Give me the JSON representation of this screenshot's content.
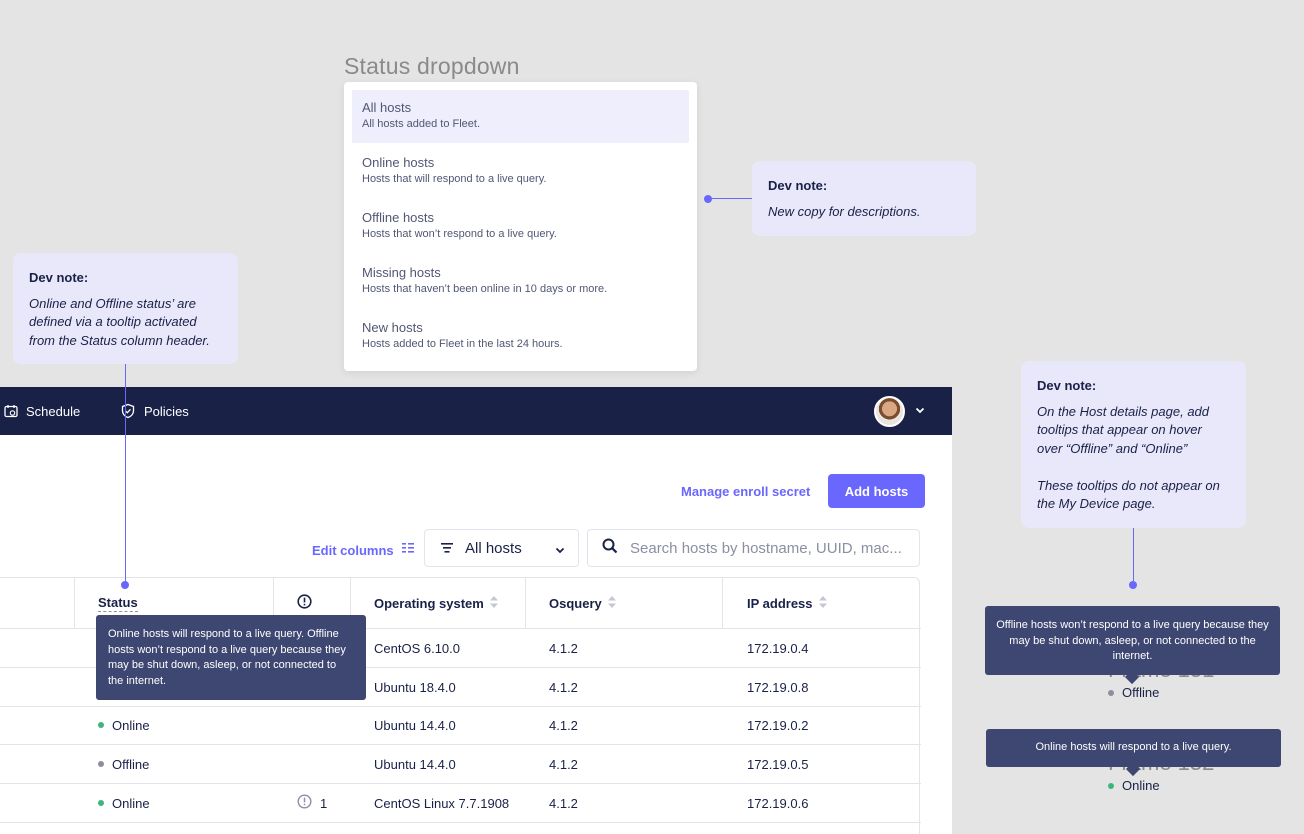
{
  "dropdown_section": {
    "heading": "Status dropdown",
    "options": [
      {
        "title": "All hosts",
        "desc": "All hosts added to Fleet."
      },
      {
        "title": "Online hosts",
        "desc": "Hosts that will respond to a live query."
      },
      {
        "title": "Offline hosts",
        "desc": "Hosts that won’t respond to a live query."
      },
      {
        "title": "Missing hosts",
        "desc": "Hosts that haven’t been online in 10 days or more."
      },
      {
        "title": "New hosts",
        "desc": "Hosts added to Fleet in the last 24 hours."
      }
    ]
  },
  "notes": [
    {
      "title": "Dev note:",
      "body": "New copy for descriptions."
    },
    {
      "title": "Dev note:",
      "body": "Online and Offline status’ are defined via a tooltip activated from the Status column header."
    },
    {
      "title": "Dev note:",
      "body": "On the Host details page, add tooltips that appear on hover over “Offline” and “Online”\n\nThese tooltips do not appear on the My Device page."
    }
  ],
  "nav": {
    "items": [
      {
        "label": "Schedule",
        "icon": "calendar-icon"
      },
      {
        "label": "Policies",
        "icon": "shield-check-icon"
      }
    ]
  },
  "header_actions": {
    "manage_enroll_secret": "Manage enroll secret",
    "add_hosts": "Add hosts"
  },
  "toolbar": {
    "edit_columns": "Edit columns",
    "status_filter_value": "All hosts",
    "search_placeholder": "Search hosts by hostname, UUID, mac..."
  },
  "table": {
    "columns": [
      "Status",
      "Operating system",
      "Osquery",
      "IP address"
    ],
    "rows": [
      {
        "status": "",
        "issues": "",
        "os": "CentOS 6.10.0",
        "osquery": "4.1.2",
        "ip": "172.19.0.4"
      },
      {
        "status": "",
        "issues": "",
        "os": "Ubuntu 18.4.0",
        "osquery": "4.1.2",
        "ip": "172.19.0.8"
      },
      {
        "status": "Online",
        "issues": "",
        "os": "Ubuntu 14.4.0",
        "osquery": "4.1.2",
        "ip": "172.19.0.2"
      },
      {
        "status": "Offline",
        "issues": "",
        "os": "Ubuntu 14.4.0",
        "osquery": "4.1.2",
        "ip": "172.19.0.5"
      },
      {
        "status": "Online",
        "issues": "1",
        "os": "CentOS Linux 7.7.1908",
        "osquery": "4.1.2",
        "ip": "172.19.0.6"
      }
    ],
    "status_header_tooltip": "Online hosts will respond to a live query. Offline hosts won’t respond to a live query because they may be shut down, asleep, or not connected to the internet."
  },
  "host_details_examples": {
    "offline_tooltip": "Offline hosts won’t respond to a live query because they may be shut down, asleep, or not connected to the internet.",
    "offline_frame": "Frame 151",
    "offline_label": "Offline",
    "online_tooltip": "Online hosts will respond to a live query.",
    "online_frame": "Frame 152",
    "online_label": "Online"
  },
  "colors": {
    "accent": "#6a67fe",
    "nav_bg": "#192147",
    "online": "#3db67b",
    "offline": "#8b8fa2",
    "note_bg": "#e9e8fb",
    "tooltip_bg": "#3e4771"
  }
}
